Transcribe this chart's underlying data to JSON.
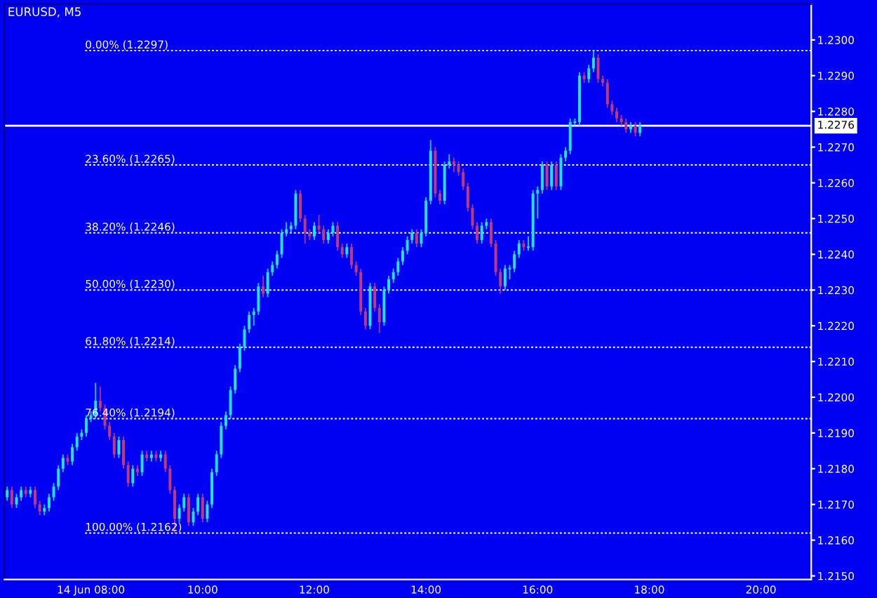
{
  "chart_data": {
    "type": "candlestick",
    "title": "EURUSD, M5",
    "x": [
      6.5,
      6.5833,
      6.6667,
      6.75,
      6.8333,
      6.9167,
      7,
      7.0833,
      7.1667,
      7.25,
      7.3333,
      7.4167,
      7.5,
      7.5833,
      7.6667,
      7.75,
      7.8333,
      7.9167,
      8,
      8.0833,
      8.1667,
      8.25,
      8.3333,
      8.4167,
      8.5,
      8.5833,
      8.6667,
      8.75,
      8.8333,
      8.9167,
      9,
      9.0833,
      9.1667,
      9.25,
      9.3333,
      9.4167,
      9.5,
      9.5833,
      9.6667,
      9.75,
      9.8333,
      9.9167,
      10,
      10.0833,
      10.1667,
      10.25,
      10.3333,
      10.4167,
      10.5,
      10.5833,
      10.6667,
      10.75,
      10.8333,
      10.9167,
      11,
      11.0833,
      11.1667,
      11.25,
      11.3333,
      11.4167,
      11.5,
      11.5833,
      11.6667,
      11.75,
      11.8333,
      11.9167,
      12,
      12.0833,
      12.1667,
      12.25,
      12.3333,
      12.4167,
      12.5,
      12.5833,
      12.6667,
      12.75,
      12.8333,
      12.9167,
      13,
      13.0833,
      13.1667,
      13.25,
      13.3333,
      13.4167,
      13.5,
      13.5833,
      13.6667,
      13.75,
      13.8333,
      13.9167,
      14,
      14.0833,
      14.1667,
      14.25,
      14.3333,
      14.4167,
      14.5,
      14.5833,
      14.6667,
      14.75,
      14.8333,
      14.9167,
      15,
      15.0833,
      15.1667,
      15.25,
      15.3333,
      15.4167,
      15.5,
      15.5833,
      15.6667,
      15.75,
      15.8333,
      15.9167,
      16,
      16.0833,
      16.1667,
      16.25,
      16.3333,
      16.4167,
      16.5,
      16.5833,
      16.6667,
      16.75,
      16.8333,
      16.9167,
      17,
      17.0833,
      17.1667,
      17.25,
      17.3333,
      17.4167,
      17.5,
      17.5833,
      17.6667,
      17.75,
      17.8333
    ],
    "ohlc": [
      [
        1.2172,
        1.2175,
        1.2171,
        1.2174
      ],
      [
        1.2174,
        1.2175,
        1.2169,
        1.217
      ],
      [
        1.217,
        1.2173,
        1.2169,
        1.2172
      ],
      [
        1.2172,
        1.2175,
        1.2171,
        1.2174
      ],
      [
        1.2174,
        1.2175,
        1.2172,
        1.2173
      ],
      [
        1.2173,
        1.2175,
        1.2172,
        1.2174
      ],
      [
        1.2174,
        1.2175,
        1.2169,
        1.217
      ],
      [
        1.217,
        1.2171,
        1.2167,
        1.2168
      ],
      [
        1.2168,
        1.217,
        1.2167,
        1.2169
      ],
      [
        1.2169,
        1.2173,
        1.2168,
        1.2172
      ],
      [
        1.2172,
        1.2176,
        1.2171,
        1.2175
      ],
      [
        1.2175,
        1.2181,
        1.2174,
        1.218
      ],
      [
        1.218,
        1.2184,
        1.2179,
        1.2183
      ],
      [
        1.2183,
        1.2184,
        1.2181,
        1.2182
      ],
      [
        1.2182,
        1.2187,
        1.2181,
        1.2186
      ],
      [
        1.2186,
        1.219,
        1.2185,
        1.2189
      ],
      [
        1.2189,
        1.2191,
        1.2188,
        1.219
      ],
      [
        1.219,
        1.2195,
        1.2189,
        1.2194
      ],
      [
        1.2194,
        1.2196,
        1.2193,
        1.2195
      ],
      [
        1.2195,
        1.2204,
        1.2194,
        1.2199
      ],
      [
        1.2199,
        1.2203,
        1.2196,
        1.2197
      ],
      [
        1.2197,
        1.2198,
        1.2191,
        1.2192
      ],
      [
        1.2192,
        1.2193,
        1.2188,
        1.2189
      ],
      [
        1.2189,
        1.219,
        1.2183,
        1.2184
      ],
      [
        1.2184,
        1.2189,
        1.2183,
        1.2188
      ],
      [
        1.2188,
        1.2189,
        1.218,
        1.2181
      ],
      [
        1.2181,
        1.2182,
        1.2175,
        1.2176
      ],
      [
        1.2176,
        1.2181,
        1.2175,
        1.218
      ],
      [
        1.218,
        1.2181,
        1.2178,
        1.2179
      ],
      [
        1.2179,
        1.2185,
        1.2178,
        1.2184
      ],
      [
        1.2184,
        1.2185,
        1.2182,
        1.2183
      ],
      [
        1.2183,
        1.2185,
        1.2182,
        1.2184
      ],
      [
        1.2184,
        1.2185,
        1.2182,
        1.2183
      ],
      [
        1.2183,
        1.2185,
        1.2182,
        1.2184
      ],
      [
        1.2184,
        1.2185,
        1.2179,
        1.218
      ],
      [
        1.218,
        1.2181,
        1.2173,
        1.2174
      ],
      [
        1.2174,
        1.2175,
        1.2162,
        1.2166
      ],
      [
        1.2166,
        1.217,
        1.2165,
        1.2169
      ],
      [
        1.2169,
        1.2173,
        1.2168,
        1.2172
      ],
      [
        1.2172,
        1.2173,
        1.2164,
        1.2165
      ],
      [
        1.2165,
        1.2169,
        1.2164,
        1.2168
      ],
      [
        1.2168,
        1.2173,
        1.2167,
        1.2172
      ],
      [
        1.2172,
        1.2173,
        1.2165,
        1.2166
      ],
      [
        1.2166,
        1.2171,
        1.2165,
        1.217
      ],
      [
        1.217,
        1.218,
        1.2169,
        1.2179
      ],
      [
        1.2179,
        1.2185,
        1.2178,
        1.2184
      ],
      [
        1.2184,
        1.2193,
        1.2183,
        1.2192
      ],
      [
        1.2192,
        1.2196,
        1.2191,
        1.2195
      ],
      [
        1.2195,
        1.2203,
        1.2194,
        1.2202
      ],
      [
        1.2202,
        1.2209,
        1.2201,
        1.2208
      ],
      [
        1.2208,
        1.2215,
        1.2207,
        1.2214
      ],
      [
        1.2214,
        1.222,
        1.2213,
        1.2219
      ],
      [
        1.2219,
        1.2224,
        1.2218,
        1.2223
      ],
      [
        1.2223,
        1.2225,
        1.222,
        1.2224
      ],
      [
        1.2224,
        1.2232,
        1.2223,
        1.2231
      ],
      [
        1.2231,
        1.2234,
        1.2228,
        1.2229
      ],
      [
        1.2229,
        1.2236,
        1.2228,
        1.2235
      ],
      [
        1.2235,
        1.2238,
        1.2234,
        1.2237
      ],
      [
        1.2237,
        1.2241,
        1.2236,
        1.224
      ],
      [
        1.224,
        1.2247,
        1.2239,
        1.2246
      ],
      [
        1.2246,
        1.2249,
        1.2245,
        1.2247
      ],
      [
        1.2247,
        1.2249,
        1.2246,
        1.2248
      ],
      [
        1.2248,
        1.2258,
        1.2247,
        1.2257
      ],
      [
        1.2257,
        1.2258,
        1.2249,
        1.225
      ],
      [
        1.225,
        1.2251,
        1.2243,
        1.2246
      ],
      [
        1.2246,
        1.2247,
        1.2244,
        1.2245
      ],
      [
        1.2245,
        1.2249,
        1.2244,
        1.2248
      ],
      [
        1.2248,
        1.2251,
        1.2246,
        1.2247
      ],
      [
        1.2247,
        1.2248,
        1.2243,
        1.2244
      ],
      [
        1.2244,
        1.2247,
        1.2243,
        1.2246
      ],
      [
        1.2246,
        1.2249,
        1.2245,
        1.2248
      ],
      [
        1.2248,
        1.2249,
        1.2241,
        1.2242
      ],
      [
        1.2242,
        1.2243,
        1.2239,
        1.224
      ],
      [
        1.224,
        1.2243,
        1.2239,
        1.2242
      ],
      [
        1.2242,
        1.2243,
        1.2236,
        1.2237
      ],
      [
        1.2237,
        1.2238,
        1.2234,
        1.2235
      ],
      [
        1.2235,
        1.2236,
        1.2223,
        1.2224
      ],
      [
        1.2224,
        1.2225,
        1.2219,
        1.222
      ],
      [
        1.222,
        1.2232,
        1.2219,
        1.2231
      ],
      [
        1.2231,
        1.2232,
        1.2224,
        1.2225
      ],
      [
        1.2225,
        1.2226,
        1.2218,
        1.2221
      ],
      [
        1.2221,
        1.2231,
        1.222,
        1.223
      ],
      [
        1.223,
        1.2234,
        1.2229,
        1.2233
      ],
      [
        1.2233,
        1.2236,
        1.2232,
        1.2235
      ],
      [
        1.2235,
        1.2239,
        1.2234,
        1.2238
      ],
      [
        1.2238,
        1.2242,
        1.2237,
        1.2241
      ],
      [
        1.2241,
        1.2245,
        1.224,
        1.2244
      ],
      [
        1.2244,
        1.2247,
        1.2243,
        1.2246
      ],
      [
        1.2246,
        1.2247,
        1.2242,
        1.2243
      ],
      [
        1.2243,
        1.2247,
        1.2242,
        1.2246
      ],
      [
        1.2246,
        1.2256,
        1.2245,
        1.2255
      ],
      [
        1.2255,
        1.2272,
        1.2254,
        1.2269
      ],
      [
        1.2269,
        1.227,
        1.2256,
        1.2257
      ],
      [
        1.2257,
        1.2258,
        1.2254,
        1.2255
      ],
      [
        1.2255,
        1.2266,
        1.2254,
        1.2265
      ],
      [
        1.2265,
        1.2268,
        1.2264,
        1.2266
      ],
      [
        1.2266,
        1.2267,
        1.2263,
        1.2265
      ],
      [
        1.2265,
        1.2266,
        1.2262,
        1.2263
      ],
      [
        1.2263,
        1.2264,
        1.2258,
        1.2259
      ],
      [
        1.2259,
        1.226,
        1.2252,
        1.2253
      ],
      [
        1.2253,
        1.2254,
        1.2247,
        1.2248
      ],
      [
        1.2248,
        1.2249,
        1.2243,
        1.2244
      ],
      [
        1.2244,
        1.2249,
        1.2243,
        1.2248
      ],
      [
        1.2248,
        1.225,
        1.2247,
        1.2249
      ],
      [
        1.2249,
        1.225,
        1.2242,
        1.2243
      ],
      [
        1.2243,
        1.2244,
        1.2234,
        1.2235
      ],
      [
        1.2235,
        1.2236,
        1.2229,
        1.2231
      ],
      [
        1.2231,
        1.2237,
        1.223,
        1.2236
      ],
      [
        1.2236,
        1.2237,
        1.2233,
        1.2236
      ],
      [
        1.2236,
        1.2241,
        1.2235,
        1.224
      ],
      [
        1.224,
        1.2244,
        1.2239,
        1.2243
      ],
      [
        1.2243,
        1.2244,
        1.2241,
        1.2242
      ],
      [
        1.2242,
        1.2245,
        1.2241,
        1.2242
      ],
      [
        1.2242,
        1.2258,
        1.2241,
        1.2257
      ],
      [
        1.2257,
        1.2259,
        1.225,
        1.2258
      ],
      [
        1.2258,
        1.2266,
        1.2257,
        1.2265
      ],
      [
        1.2265,
        1.2266,
        1.2258,
        1.2259
      ],
      [
        1.2259,
        1.2266,
        1.2258,
        1.2265
      ],
      [
        1.2265,
        1.2266,
        1.2258,
        1.2259
      ],
      [
        1.2259,
        1.2268,
        1.2258,
        1.2267
      ],
      [
        1.2267,
        1.227,
        1.2266,
        1.2269
      ],
      [
        1.2269,
        1.2278,
        1.2268,
        1.2277
      ],
      [
        1.2277,
        1.2278,
        1.2276,
        1.2277
      ],
      [
        1.2277,
        1.2291,
        1.2276,
        1.229
      ],
      [
        1.229,
        1.2291,
        1.2288,
        1.2289
      ],
      [
        1.2289,
        1.2293,
        1.2288,
        1.2292
      ],
      [
        1.2292,
        1.2297,
        1.2291,
        1.2295
      ],
      [
        1.2295,
        1.2296,
        1.2288,
        1.2289
      ],
      [
        1.2289,
        1.229,
        1.2287,
        1.2288
      ],
      [
        1.2288,
        1.2289,
        1.2281,
        1.2282
      ],
      [
        1.2282,
        1.2283,
        1.2279,
        1.228
      ],
      [
        1.228,
        1.2281,
        1.2277,
        1.2278
      ],
      [
        1.2278,
        1.2279,
        1.2276,
        1.2277
      ],
      [
        1.2277,
        1.2278,
        1.2274,
        1.2275
      ],
      [
        1.2275,
        1.2277,
        1.2274,
        1.2276
      ],
      [
        1.2276,
        1.2277,
        1.2273,
        1.2274
      ],
      [
        1.2274,
        1.2277,
        1.2273,
        1.2276
      ]
    ],
    "xlim": [
      6.45,
      20.9
    ],
    "ylim": [
      1.2149,
      1.231
    ],
    "xticks": [
      {
        "value": 8,
        "label": "14 Jun 08:00"
      },
      {
        "value": 10,
        "label": "10:00"
      },
      {
        "value": 12,
        "label": "12:00"
      },
      {
        "value": 14,
        "label": "14:00"
      },
      {
        "value": 16,
        "label": "16:00"
      },
      {
        "value": 18,
        "label": "18:00"
      },
      {
        "value": 20,
        "label": "20:00"
      }
    ],
    "yticks": [
      {
        "value": 1.215,
        "label": "1.2150"
      },
      {
        "value": 1.216,
        "label": "1.2160"
      },
      {
        "value": 1.217,
        "label": "1.2170"
      },
      {
        "value": 1.218,
        "label": "1.2180"
      },
      {
        "value": 1.219,
        "label": "1.2190"
      },
      {
        "value": 1.22,
        "label": "1.2200"
      },
      {
        "value": 1.221,
        "label": "1.2210"
      },
      {
        "value": 1.222,
        "label": "1.2220"
      },
      {
        "value": 1.223,
        "label": "1.2230"
      },
      {
        "value": 1.224,
        "label": "1.2240"
      },
      {
        "value": 1.225,
        "label": "1.2250"
      },
      {
        "value": 1.226,
        "label": "1.2260"
      },
      {
        "value": 1.227,
        "label": "1.2270"
      },
      {
        "value": 1.228,
        "label": "1.2280"
      },
      {
        "value": 1.229,
        "label": "1.2290"
      },
      {
        "value": 1.23,
        "label": "1.2300"
      }
    ],
    "ref_lines": [
      {
        "axis": "y",
        "value": 1.2297,
        "label": "0.00% (1.2297)",
        "color": "#ffffff",
        "line_style": "dotted"
      },
      {
        "axis": "y",
        "value": 1.2265,
        "label": "23.60% (1.2265)",
        "color": "#ffffff",
        "line_style": "dotted"
      },
      {
        "axis": "y",
        "value": 1.2246,
        "label": "38.20% (1.2246)",
        "color": "#ffffff",
        "line_style": "dotted"
      },
      {
        "axis": "y",
        "value": 1.223,
        "label": "50.00% (1.2230)",
        "color": "#ffffff",
        "line_style": "dotted"
      },
      {
        "axis": "y",
        "value": 1.2214,
        "label": "61.80% (1.2214)",
        "color": "#ffffff",
        "line_style": "dotted"
      },
      {
        "axis": "y",
        "value": 1.2194,
        "label": "76.40% (1.2194)",
        "color": "#ffffff",
        "line_style": "dotted"
      },
      {
        "axis": "y",
        "value": 1.2162,
        "label": "100.00% (1.2162)",
        "color": "#ffffff",
        "line_style": "dotted"
      },
      {
        "axis": "y",
        "value": 1.2276,
        "label": "1.2276",
        "color": "#ffffff",
        "line_style": "solid"
      }
    ]
  }
}
